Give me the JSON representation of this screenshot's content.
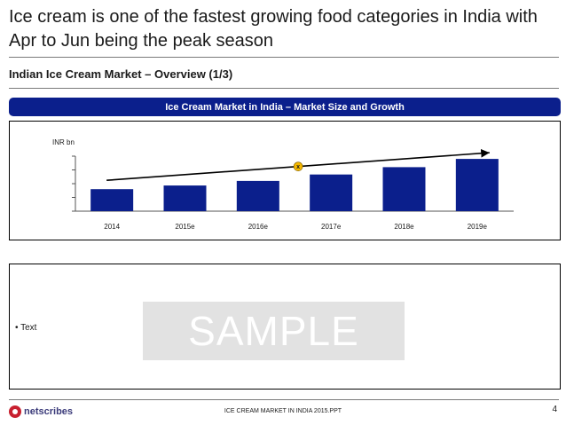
{
  "slide": {
    "title": "Ice cream is one of the fastest growing food categories in India with Apr to Jun being the peak season",
    "subtitle": "Indian Ice Cream Market – Overview (1/3)",
    "banner": "Ice Cream Market in India – Market Size and Growth"
  },
  "text_box": {
    "bullet": "• Text",
    "watermark": "SAMPLE"
  },
  "footer": {
    "logo_text": "netscribes",
    "center_text": "ICE CREAM MARKET IN INDIA 2015.PPT",
    "page_number": "4"
  },
  "colors": {
    "bar": "#0b1f8c",
    "banner": "#0b1f8c",
    "cagr_badge": "#f5b800"
  },
  "chart_data": {
    "type": "bar",
    "categories": [
      "2014",
      "2015e",
      "2016e",
      "2017e",
      "2018e",
      "2019e"
    ],
    "values": [
      24,
      28,
      33,
      40,
      48,
      57
    ],
    "ylabel": "INR bn",
    "ylim": [
      0,
      60
    ],
    "yticks_labeled": false,
    "grid": false,
    "trend_arrow": true,
    "annotation": "x"
  }
}
